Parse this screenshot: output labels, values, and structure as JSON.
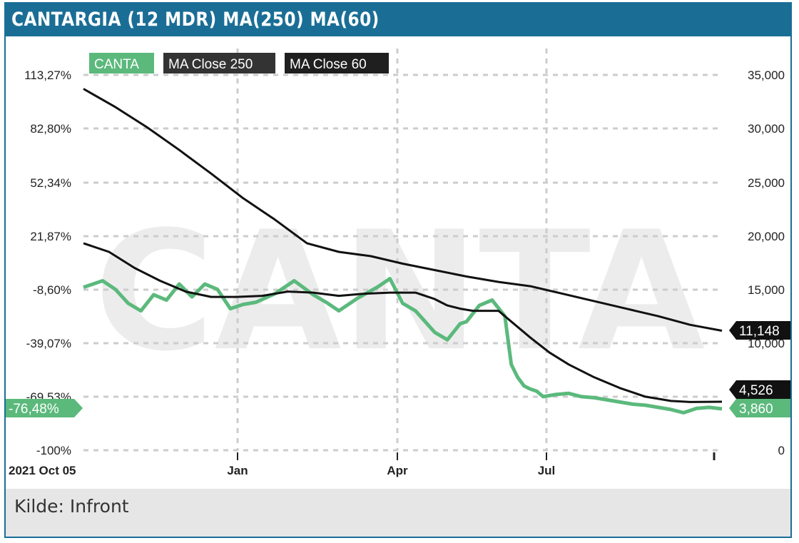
{
  "title": "CANTARGIA (12 MDR) MA(250) MA(60)",
  "footer": "Kilde: Infront",
  "watermark": "CANTA",
  "colors": {
    "header": "#1a6e96",
    "canta": "#5bb97c",
    "ma": "#111111",
    "grid": "#cccccc"
  },
  "chart_data": {
    "type": "line",
    "x_start_label": "2021 Oct 05",
    "x_ticks": [
      "Jan",
      "Apr",
      "Jul"
    ],
    "y_left_ticks": [
      "113,27%",
      "82,80%",
      "52,34%",
      "21,87%",
      "-8,60%",
      "-39,07%",
      "-69,53%",
      "-100%"
    ],
    "y_right_ticks": [
      "35,000",
      "30,000",
      "25,000",
      "20,000",
      "15,000",
      "10,000",
      "5,000",
      "0"
    ],
    "ylim_right": [
      0,
      35000
    ],
    "legend": [
      "CANTA",
      "MA Close 250",
      "MA Close 60"
    ],
    "last_values": {
      "ma250": "11,148",
      "ma60": "4,526",
      "canta": "3,860",
      "canta_pct": "-76,48%"
    },
    "series": [
      {
        "name": "CANTA",
        "color": "#5bb97c",
        "x": [
          0,
          0.03,
          0.05,
          0.07,
          0.09,
          0.11,
          0.13,
          0.15,
          0.17,
          0.19,
          0.21,
          0.23,
          0.25,
          0.27,
          0.3,
          0.33,
          0.36,
          0.38,
          0.4,
          0.43,
          0.46,
          0.48,
          0.5,
          0.52,
          0.55,
          0.57,
          0.59,
          0.6,
          0.62,
          0.64,
          0.66,
          0.67,
          0.68,
          0.69,
          0.7,
          0.71,
          0.72,
          0.74,
          0.76,
          0.78,
          0.8,
          0.83,
          0.86,
          0.88,
          0.9,
          0.92,
          0.94,
          0.96,
          0.98,
          1.0
        ],
        "values": [
          15.2,
          15.8,
          15.0,
          13.7,
          13.0,
          14.5,
          14.0,
          15.5,
          14.3,
          15.5,
          15.0,
          13.2,
          13.6,
          13.8,
          14.6,
          15.8,
          14.5,
          13.8,
          13.0,
          14.2,
          15.2,
          16.0,
          13.7,
          13.0,
          11.0,
          10.3,
          11.8,
          12.0,
          13.5,
          14.0,
          12.5,
          8.0,
          6.8,
          6.0,
          5.7,
          5.5,
          5.0,
          5.2,
          5.3,
          5.0,
          4.9,
          4.6,
          4.3,
          4.2,
          4.0,
          3.8,
          3.5,
          3.9,
          4.0,
          3.86
        ]
      },
      {
        "name": "MA Close 250",
        "color": "#111111",
        "x": [
          0,
          0.05,
          0.1,
          0.15,
          0.2,
          0.25,
          0.3,
          0.35,
          0.4,
          0.45,
          0.5,
          0.55,
          0.6,
          0.65,
          0.7,
          0.75,
          0.8,
          0.85,
          0.9,
          0.95,
          1.0
        ],
        "values": [
          33.7,
          32.0,
          30.1,
          28.0,
          25.8,
          23.5,
          21.5,
          19.3,
          18.5,
          18.1,
          17.4,
          16.8,
          16.2,
          15.7,
          15.3,
          14.6,
          13.9,
          13.2,
          12.5,
          11.7,
          11.148
        ]
      },
      {
        "name": "MA Close 60",
        "color": "#111111",
        "x": [
          0,
          0.04,
          0.08,
          0.12,
          0.16,
          0.2,
          0.24,
          0.28,
          0.32,
          0.36,
          0.4,
          0.44,
          0.48,
          0.52,
          0.55,
          0.57,
          0.59,
          0.61,
          0.63,
          0.65,
          0.67,
          0.7,
          0.73,
          0.76,
          0.8,
          0.84,
          0.88,
          0.92,
          0.95,
          1.0
        ],
        "values": [
          19.3,
          18.5,
          17.0,
          15.8,
          14.8,
          14.3,
          14.3,
          14.4,
          14.8,
          14.7,
          14.4,
          14.6,
          14.7,
          14.7,
          14.1,
          13.5,
          13.2,
          13.0,
          13.0,
          13.0,
          12.0,
          10.5,
          9.1,
          8.0,
          6.8,
          5.8,
          5.0,
          4.6,
          4.5,
          4.526
        ]
      }
    ]
  }
}
